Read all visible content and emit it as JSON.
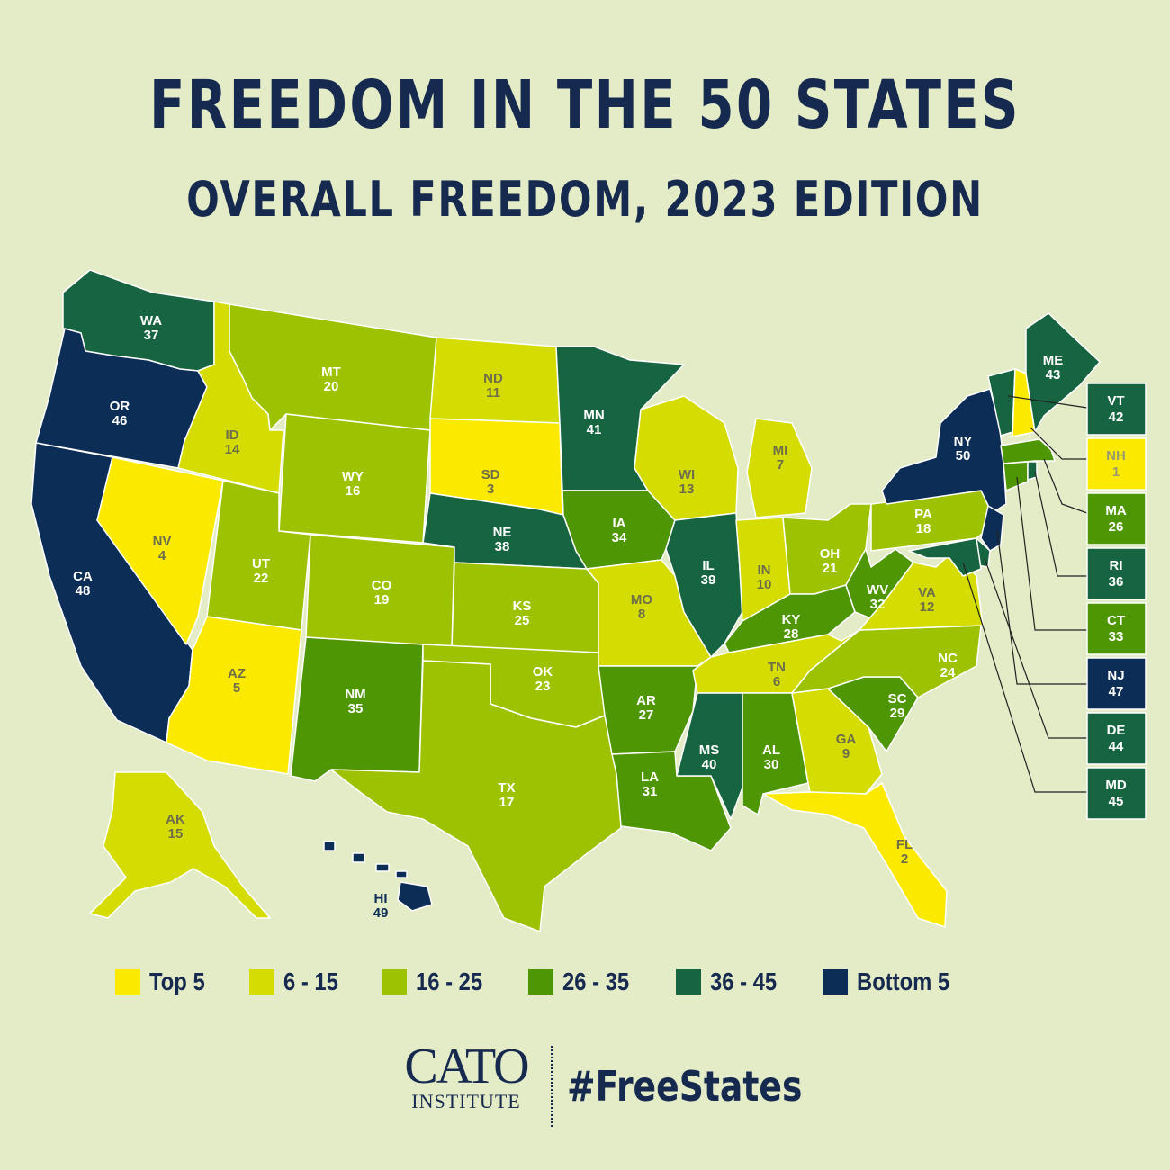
{
  "title": "FREEDOM IN THE 50 STATES",
  "subtitle": "OVERALL FREEDOM, 2023 EDITION",
  "colors": {
    "background": "#e3ebc7",
    "top5": "#fce900",
    "r6_15": "#d4dc02",
    "r16_25": "#9dc202",
    "r26_35": "#4f9605",
    "r36_45": "#176540",
    "bottom5": "#0c2d56"
  },
  "legend": [
    {
      "label": "Top 5",
      "color_key": "top5"
    },
    {
      "label": "6 - 15",
      "color_key": "r6_15"
    },
    {
      "label": "16 - 25",
      "color_key": "r16_25"
    },
    {
      "label": "26 - 35",
      "color_key": "r26_35"
    },
    {
      "label": "36 - 45",
      "color_key": "r36_45"
    },
    {
      "label": "Bottom 5",
      "color_key": "bottom5"
    }
  ],
  "states": {
    "WA": {
      "abbr": "WA",
      "rank": "37"
    },
    "OR": {
      "abbr": "OR",
      "rank": "46"
    },
    "CA": {
      "abbr": "CA",
      "rank": "48"
    },
    "ID": {
      "abbr": "ID",
      "rank": "14"
    },
    "NV": {
      "abbr": "NV",
      "rank": "4"
    },
    "MT": {
      "abbr": "MT",
      "rank": "20"
    },
    "WY": {
      "abbr": "WY",
      "rank": "16"
    },
    "UT": {
      "abbr": "UT",
      "rank": "22"
    },
    "AZ": {
      "abbr": "AZ",
      "rank": "5"
    },
    "CO": {
      "abbr": "CO",
      "rank": "19"
    },
    "NM": {
      "abbr": "NM",
      "rank": "35"
    },
    "ND": {
      "abbr": "ND",
      "rank": "11"
    },
    "SD": {
      "abbr": "SD",
      "rank": "3"
    },
    "NE": {
      "abbr": "NE",
      "rank": "38"
    },
    "KS": {
      "abbr": "KS",
      "rank": "25"
    },
    "OK": {
      "abbr": "OK",
      "rank": "23"
    },
    "TX": {
      "abbr": "TX",
      "rank": "17"
    },
    "MN": {
      "abbr": "MN",
      "rank": "41"
    },
    "IA": {
      "abbr": "IA",
      "rank": "34"
    },
    "MO": {
      "abbr": "MO",
      "rank": "8"
    },
    "AR": {
      "abbr": "AR",
      "rank": "27"
    },
    "LA": {
      "abbr": "LA",
      "rank": "31"
    },
    "WI": {
      "abbr": "WI",
      "rank": "13"
    },
    "IL": {
      "abbr": "IL",
      "rank": "39"
    },
    "MI": {
      "abbr": "MI",
      "rank": "7"
    },
    "IN": {
      "abbr": "IN",
      "rank": "10"
    },
    "OH": {
      "abbr": "OH",
      "rank": "21"
    },
    "KY": {
      "abbr": "KY",
      "rank": "28"
    },
    "TN": {
      "abbr": "TN",
      "rank": "6"
    },
    "MS": {
      "abbr": "MS",
      "rank": "40"
    },
    "AL": {
      "abbr": "AL",
      "rank": "30"
    },
    "GA": {
      "abbr": "GA",
      "rank": "9"
    },
    "FL": {
      "abbr": "FL",
      "rank": "2"
    },
    "SC": {
      "abbr": "SC",
      "rank": "29"
    },
    "NC": {
      "abbr": "NC",
      "rank": "24"
    },
    "VA": {
      "abbr": "VA",
      "rank": "12"
    },
    "WV": {
      "abbr": "WV",
      "rank": "32"
    },
    "PA": {
      "abbr": "PA",
      "rank": "18"
    },
    "NY": {
      "abbr": "NY",
      "rank": "50"
    },
    "ME": {
      "abbr": "ME",
      "rank": "43"
    },
    "AK": {
      "abbr": "AK",
      "rank": "15"
    },
    "HI": {
      "abbr": "HI",
      "rank": "49"
    }
  },
  "callouts": [
    {
      "abbr": "VT",
      "rank": "42",
      "color_key": "r36_45"
    },
    {
      "abbr": "NH",
      "rank": "1",
      "color_key": "top5"
    },
    {
      "abbr": "MA",
      "rank": "26",
      "color_key": "r26_35"
    },
    {
      "abbr": "RI",
      "rank": "36",
      "color_key": "r36_45"
    },
    {
      "abbr": "CT",
      "rank": "33",
      "color_key": "r26_35"
    },
    {
      "abbr": "NJ",
      "rank": "47",
      "color_key": "bottom5"
    },
    {
      "abbr": "DE",
      "rank": "44",
      "color_key": "r36_45"
    },
    {
      "abbr": "MD",
      "rank": "45",
      "color_key": "r36_45"
    }
  ],
  "footer": {
    "logo_main": "CATO",
    "logo_sub": "INSTITUTE",
    "hashtag": "#FreeStates"
  }
}
